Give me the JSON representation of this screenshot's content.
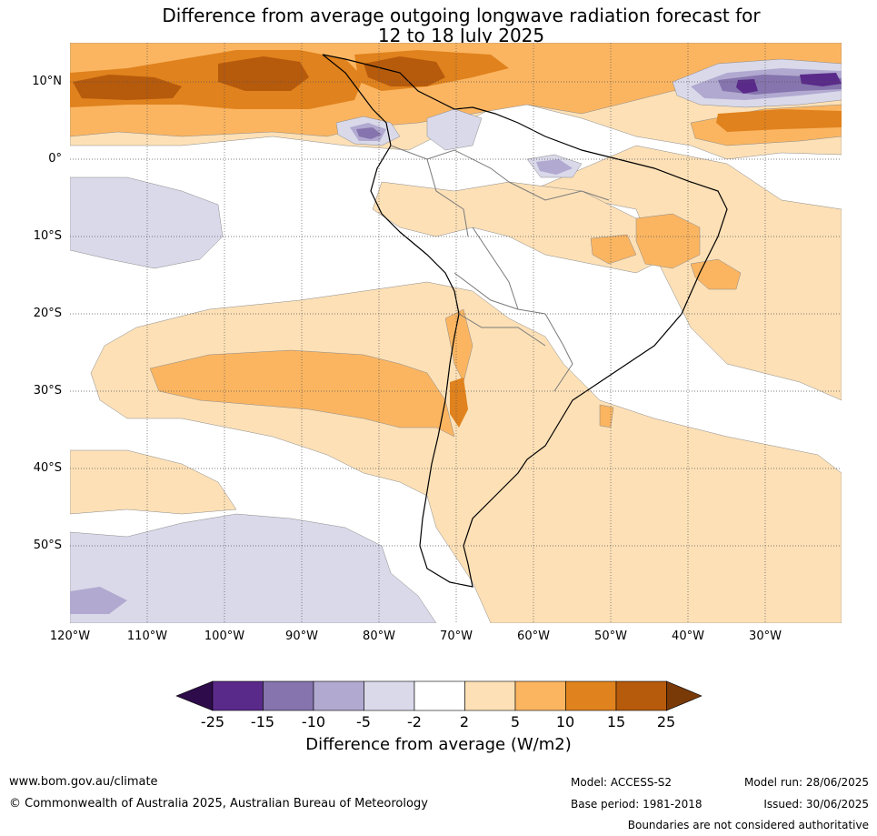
{
  "title": {
    "line1": "Difference from average outgoing longwave radiation forecast for",
    "line2": "12 to 18 July 2025"
  },
  "lat_labels": [
    "10°N",
    "0°",
    "10°S",
    "20°S",
    "30°S",
    "40°S",
    "50°S"
  ],
  "lon_labels": [
    "120°W",
    "110°W",
    "100°W",
    "90°W",
    "80°W",
    "70°W",
    "60°W",
    "50°W",
    "40°W",
    "30°W"
  ],
  "colorbar": {
    "ticks": [
      "-25",
      "-15",
      "-10",
      "-5",
      "-2",
      "2",
      "5",
      "10",
      "15",
      "25"
    ],
    "colors": [
      "#5a2a8a",
      "#8574ad",
      "#b1a9d0",
      "#d9d9ea",
      "#ffffff",
      "#fde0b6",
      "#fbb561",
      "#e0821d",
      "#b65a0c"
    ],
    "under_color": "#2e0b4a",
    "over_color": "#7a3a08",
    "label": "Difference from average (W/m2)"
  },
  "footer": {
    "website": "www.bom.gov.au/climate",
    "copyright": "© Commonwealth of Australia 2025, Australian Bureau of Meteorology",
    "model": "Model: ACCESS-S2",
    "model_run": "Model run: 28/06/2025",
    "base_period": "Base period: 1981-2018",
    "issued": "Issued: 30/06/2025",
    "disclaimer": "Boundaries are not considered authoritative"
  }
}
